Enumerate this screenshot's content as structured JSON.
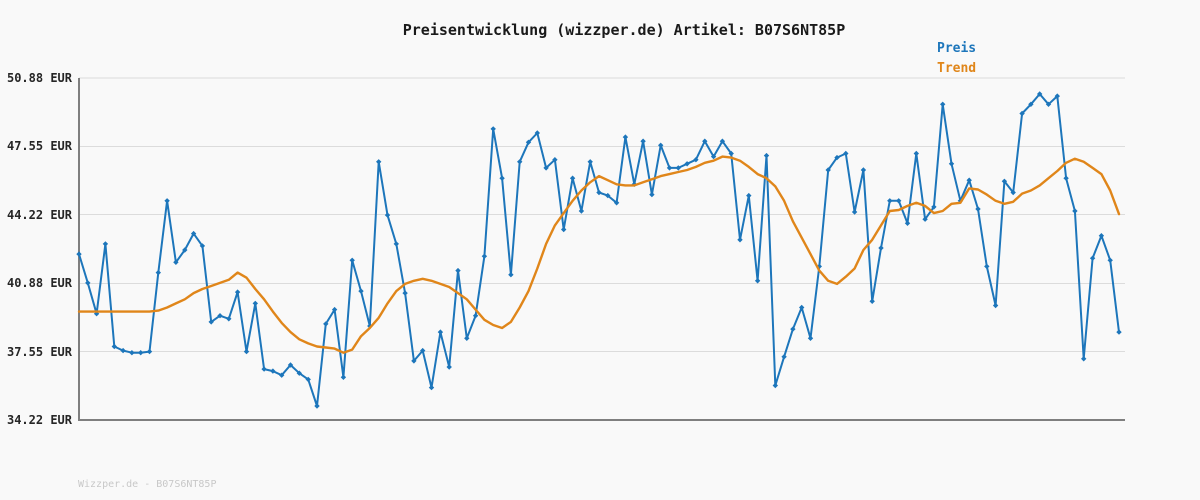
{
  "colors": {
    "background": "#f9f9f9",
    "grid": "#dcdcdc",
    "axis": "#7f7f7f",
    "tick_label": "#262626",
    "title": "#1a1a1a",
    "watermark": "#c8c8c8",
    "preis": "#1d76bb",
    "trend": "#e0861a"
  },
  "watermark": {
    "text": "Wizzper.de - B07S6NT85P"
  },
  "chart_data": {
    "type": "line",
    "title": "Preisentwicklung (wizzper.de) Artikel: B07S6NT85P",
    "xlabel": "",
    "ylabel": "EUR",
    "ylim": [
      34.22,
      50.88
    ],
    "grid": "horizontal",
    "legend_position": "top-right",
    "x_axis": {
      "tick_labels_visible": false,
      "n_points": 119
    },
    "y_ticks": [
      {
        "value": 50.88,
        "label": "50.88 EUR"
      },
      {
        "value": 47.55,
        "label": "47.55 EUR"
      },
      {
        "value": 44.22,
        "label": "44.22 EUR"
      },
      {
        "value": 40.88,
        "label": "40.88 EUR"
      },
      {
        "value": 37.55,
        "label": "37.55 EUR"
      },
      {
        "value": 34.22,
        "label": "34.22 EUR"
      }
    ],
    "series": [
      {
        "name": "Preis",
        "color": "#1d76bb",
        "marker": "diamond",
        "line_width": 2,
        "values": [
          42.3,
          40.9,
          39.4,
          42.8,
          37.8,
          37.6,
          37.5,
          37.5,
          37.55,
          41.4,
          44.9,
          41.9,
          42.5,
          43.3,
          42.7,
          39.0,
          39.3,
          39.15,
          40.45,
          37.55,
          39.9,
          36.7,
          36.6,
          36.4,
          36.9,
          36.5,
          36.2,
          34.9,
          38.9,
          39.6,
          36.3,
          42.0,
          40.5,
          38.8,
          46.8,
          44.2,
          42.8,
          40.4,
          37.1,
          37.6,
          35.8,
          38.5,
          36.8,
          41.5,
          38.2,
          39.3,
          42.2,
          48.4,
          46.0,
          41.3,
          46.8,
          47.75,
          48.2,
          46.5,
          46.9,
          43.5,
          46.0,
          44.4,
          46.8,
          45.3,
          45.15,
          44.8,
          48.0,
          45.7,
          47.8,
          45.2,
          47.6,
          46.5,
          46.5,
          46.7,
          46.9,
          47.8,
          47.05,
          47.8,
          47.2,
          43.0,
          45.15,
          41.0,
          47.1,
          35.9,
          37.3,
          38.65,
          39.7,
          38.2,
          41.7,
          46.4,
          47.0,
          47.2,
          44.35,
          46.4,
          40.0,
          42.6,
          44.9,
          44.9,
          43.8,
          47.2,
          44.0,
          44.6,
          49.6,
          46.7,
          44.9,
          45.9,
          44.5,
          41.7,
          39.8,
          45.85,
          45.3,
          49.15,
          49.6,
          50.1,
          49.6,
          50.0,
          46.0,
          44.4,
          37.2,
          42.1,
          43.2,
          42.0,
          38.5
        ]
      },
      {
        "name": "Trend",
        "color": "#e0861a",
        "marker": "none",
        "line_width": 2.4,
        "values": [
          39.5,
          39.5,
          39.5,
          39.5,
          39.5,
          39.5,
          39.5,
          39.5,
          39.5,
          39.55,
          39.7,
          39.9,
          40.1,
          40.4,
          40.6,
          40.75,
          40.9,
          41.05,
          41.4,
          41.15,
          40.6,
          40.1,
          39.5,
          38.95,
          38.5,
          38.15,
          37.95,
          37.8,
          37.75,
          37.7,
          37.5,
          37.65,
          38.3,
          38.7,
          39.2,
          39.9,
          40.5,
          40.85,
          41.0,
          41.1,
          41.0,
          40.85,
          40.7,
          40.4,
          40.1,
          39.6,
          39.1,
          38.85,
          38.7,
          39.0,
          39.7,
          40.5,
          41.6,
          42.8,
          43.7,
          44.3,
          44.9,
          45.4,
          45.8,
          46.1,
          45.9,
          45.7,
          45.65,
          45.65,
          45.8,
          45.95,
          46.1,
          46.2,
          46.3,
          46.4,
          46.55,
          46.75,
          46.85,
          47.05,
          47.0,
          46.85,
          46.55,
          46.2,
          46.0,
          45.6,
          44.9,
          43.9,
          43.1,
          42.3,
          41.5,
          41.0,
          40.85,
          41.2,
          41.6,
          42.5,
          43.0,
          43.7,
          44.4,
          44.45,
          44.65,
          44.8,
          44.65,
          44.3,
          44.4,
          44.75,
          44.8,
          45.5,
          45.45,
          45.2,
          44.9,
          44.75,
          44.85,
          45.25,
          45.4,
          45.65,
          46.0,
          46.35,
          46.75,
          46.95,
          46.8,
          46.5,
          46.2,
          45.4,
          44.25
        ]
      }
    ]
  }
}
